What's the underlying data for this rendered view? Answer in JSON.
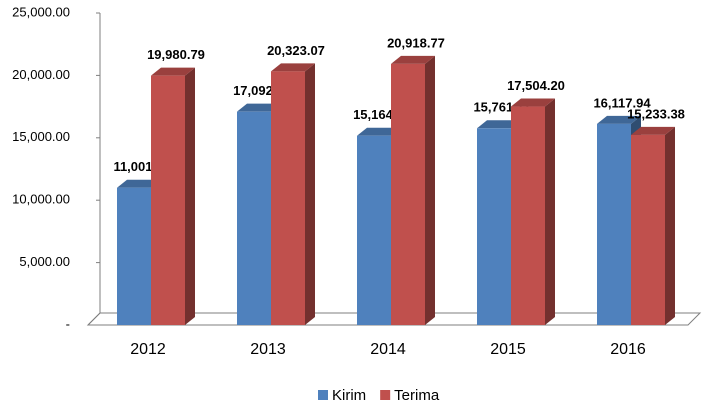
{
  "chart_data": {
    "type": "bar3d",
    "categories": [
      "2012",
      "2013",
      "2014",
      "2015",
      "2016"
    ],
    "series": [
      {
        "name": "Kirim",
        "color": "#4f81bd",
        "values": [
          11001.8,
          17092.74,
          15164.2,
          15761.11,
          16117.94
        ],
        "value_labels": [
          "11,001.80",
          "17,092.74",
          "15,164.20",
          "15,761.11",
          "16,117.94"
        ]
      },
      {
        "name": "Terima",
        "color": "#c0504d",
        "values": [
          19980.79,
          20323.07,
          20918.77,
          17504.2,
          15233.38
        ],
        "value_labels": [
          "19,980.79",
          "20,323.07",
          "20,918.77",
          "17,504.20",
          "15,233.38"
        ]
      }
    ],
    "ylim": [
      0,
      25000
    ],
    "yticks": [
      {
        "value": 0,
        "label": "-"
      },
      {
        "value": 5000,
        "label": "5,000.00"
      },
      {
        "value": 10000,
        "label": "10,000.00"
      },
      {
        "value": 15000,
        "label": "15,000.00"
      },
      {
        "value": 20000,
        "label": "20,000.00"
      },
      {
        "value": 25000,
        "label": "25,000.00"
      }
    ],
    "legend": "bottom"
  }
}
